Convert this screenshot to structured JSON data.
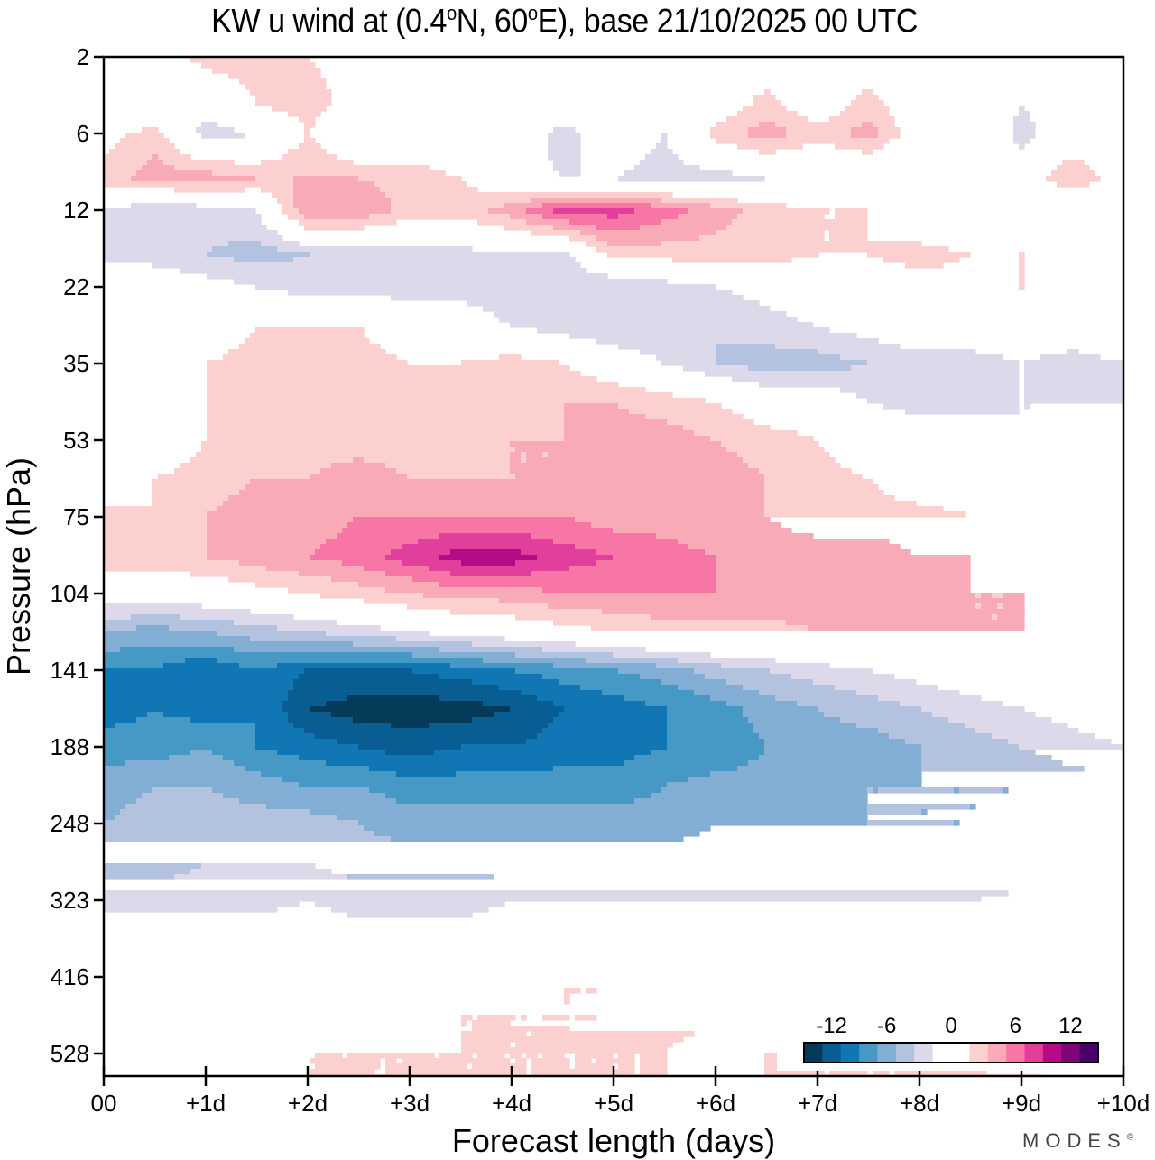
{
  "chart_data": {
    "type": "heatmap",
    "title": "KW u wind at (0.4°N, 60°E),  base 21/10/2025  00 UTC",
    "title_parts": {
      "pre": "KW u wind at (0.4",
      "deg1": "o",
      "mid": "N, 60",
      "deg2": "o",
      "post": "E),  base 21/10/2025  00 UTC"
    },
    "xlabel": "Forecast length (days)",
    "ylabel": "Pressure (hPa)",
    "x_ticks": [
      "00",
      "+1d",
      "+2d",
      "+3d",
      "+4d",
      "+5d",
      "+6d",
      "+7d",
      "+8d",
      "+9d",
      "+10d"
    ],
    "xlim": [
      0,
      10
    ],
    "y_ticks": [
      "2",
      "6",
      "12",
      "22",
      "35",
      "53",
      "75",
      "104",
      "141",
      "188",
      "248",
      "323",
      "416",
      "528"
    ],
    "y_axis_scale": "pressure (log-like, decreasing upward)",
    "colorbar": {
      "ticks": [
        "-12",
        "-6",
        "0",
        "6",
        "12"
      ],
      "levels": [
        -14,
        -12,
        -10,
        -8,
        -6,
        -4,
        -2,
        0,
        2,
        4,
        6,
        8,
        10,
        12,
        14
      ],
      "colors": [
        "#053a58",
        "#085d93",
        "#1176b4",
        "#4698c5",
        "#82aed3",
        "#b3c3df",
        "#dcdaea",
        "#ffffff",
        "#ffffff",
        "#fbd0cf",
        "#f9aab7",
        "#f776a6",
        "#e23e9b",
        "#b60a86",
        "#7f0578",
        "#4a016a"
      ],
      "placement": "bottom-right inside plot"
    },
    "x_days": [
      0,
      0.5,
      1,
      1.5,
      2,
      2.5,
      3,
      3.5,
      4,
      4.5,
      5,
      5.5,
      6,
      6.5,
      7,
      7.5,
      8,
      8.5,
      9,
      9.5,
      10
    ],
    "y_levels_hPa": [
      2,
      4,
      6,
      9,
      12,
      17,
      22,
      28,
      35,
      43,
      53,
      63,
      75,
      89,
      104,
      121,
      141,
      163,
      188,
      217,
      248,
      284,
      323,
      368,
      416,
      470,
      528,
      600
    ],
    "u_wind_ms": [
      [
        0,
        0,
        3,
        3,
        2,
        1,
        1,
        0,
        0,
        -2,
        0,
        0,
        0,
        0,
        0,
        0,
        0,
        0,
        0,
        0,
        0
      ],
      [
        0,
        -2,
        -1,
        2,
        3,
        1,
        0,
        -2,
        0,
        0,
        0,
        -2,
        0,
        3,
        0,
        3,
        0,
        0,
        -2,
        0,
        0
      ],
      [
        1,
        3,
        -3,
        -2,
        2,
        -2,
        0,
        0,
        0,
        -3,
        0,
        -2,
        3,
        5,
        3,
        5,
        0,
        2,
        -3,
        0,
        -1
      ],
      [
        3,
        5,
        5,
        4,
        4,
        4,
        3,
        2,
        -1,
        -2,
        -2,
        -3,
        -3,
        -2,
        -2,
        -2,
        -2,
        0,
        0,
        4,
        0
      ],
      [
        -2,
        -4,
        -3,
        -2,
        6,
        6,
        3,
        3,
        5,
        9,
        9,
        7,
        5,
        3,
        2,
        2,
        -1,
        -2,
        -2,
        -2,
        -2
      ],
      [
        -3,
        -3,
        -4,
        -5,
        -4,
        -4,
        -3,
        -3,
        -2,
        -3,
        3,
        3,
        3,
        3,
        2,
        2,
        3,
        2,
        2,
        2,
        2
      ],
      [
        2,
        0,
        -1,
        -2,
        -3,
        -3,
        -3,
        -3,
        -4,
        -4,
        -4,
        -3,
        -2,
        -1,
        0,
        0,
        1,
        1,
        2,
        0,
        0
      ],
      [
        2,
        0,
        0,
        2,
        2,
        2,
        0,
        0,
        -2,
        -3,
        -4,
        -4,
        -4,
        -3,
        -2,
        -1,
        0,
        0,
        0,
        0,
        0
      ],
      [
        0,
        0,
        2,
        3,
        3,
        3,
        2,
        2,
        3,
        2,
        0,
        -2,
        -4,
        -5,
        -5,
        -4,
        -3,
        -3,
        -2,
        -3,
        -2
      ],
      [
        0,
        0,
        2,
        3,
        3,
        2,
        2,
        3,
        3,
        4,
        4,
        3,
        2,
        0,
        0,
        -2,
        -3,
        -3,
        -2,
        -2,
        -2
      ],
      [
        -2,
        0,
        2,
        3,
        3,
        3,
        3,
        3,
        4,
        4,
        5,
        5,
        4,
        3,
        2,
        0,
        0,
        0,
        -2,
        -2,
        -2
      ],
      [
        0,
        2,
        3,
        4,
        4,
        5,
        4,
        4,
        4,
        4,
        5,
        5,
        5,
        4,
        3,
        2,
        0,
        0,
        0,
        0,
        -2
      ],
      [
        3,
        2,
        4,
        5,
        5,
        6,
        6,
        6,
        6,
        6,
        5,
        5,
        4,
        4,
        3,
        3,
        3,
        2,
        2,
        2,
        2
      ],
      [
        3,
        3,
        4,
        5,
        6,
        7,
        9,
        11,
        11,
        9,
        8,
        7,
        6,
        5,
        5,
        5,
        4,
        4,
        3,
        3,
        2
      ],
      [
        0,
        0,
        0,
        1,
        2,
        3,
        4,
        5,
        5,
        6,
        6,
        6,
        6,
        6,
        6,
        6,
        5,
        4,
        4,
        3,
        3
      ],
      [
        -6,
        -7,
        -6,
        -5,
        -4,
        -3,
        -2,
        -1,
        0,
        1,
        2,
        3,
        3,
        3,
        4,
        4,
        4,
        4,
        4,
        3,
        2
      ],
      [
        -10,
        -10,
        -12,
        -10,
        -12,
        -12,
        -12,
        -11,
        -10,
        -9,
        -8,
        -7,
        -5,
        -4,
        -3,
        -2,
        -1,
        0,
        1,
        2,
        2
      ],
      [
        -11,
        -10,
        -11,
        -10,
        -14,
        -15,
        -15,
        -15,
        -14,
        -12,
        -11,
        -10,
        -9,
        -7,
        -6,
        -5,
        -4,
        -3,
        -2,
        -1,
        0
      ],
      [
        -9,
        -9,
        -8,
        -10,
        -11,
        -12,
        -13,
        -12,
        -12,
        -11,
        -11,
        -10,
        -10,
        -8,
        -7,
        -7,
        -6,
        -5,
        -4,
        -3,
        -2
      ],
      [
        -7,
        -6,
        -6,
        -7,
        -8,
        -8,
        -9,
        -9,
        -9,
        -9,
        -9,
        -8,
        -7,
        -7,
        -7,
        -6,
        -6,
        -6,
        -6,
        -5,
        -5
      ],
      [
        -6,
        -5,
        -5,
        -5,
        -5,
        -6,
        -7,
        -7,
        -7,
        -7,
        -7,
        -7,
        -6,
        -6,
        -6,
        -6,
        -6,
        -6,
        -6,
        -6,
        -6
      ],
      [
        -5,
        -5,
        -4,
        -4,
        -4,
        -5,
        -5,
        -5,
        -5,
        -5,
        -5,
        -5,
        -5,
        -5,
        -5,
        -5,
        -5,
        -5,
        -5,
        -5,
        -5
      ],
      [
        -3,
        -3,
        -3,
        -3,
        -2,
        -3,
        -3,
        -3,
        -2,
        -2,
        -2,
        -2,
        -2,
        -2,
        -2,
        -2,
        -2,
        -2,
        -1,
        -1,
        -1
      ],
      [
        0,
        0,
        0,
        0,
        0,
        -1,
        -1,
        -1,
        0,
        0,
        0,
        0,
        0,
        0,
        0,
        0,
        0,
        0,
        1,
        1,
        1
      ],
      [
        1,
        0,
        0,
        0,
        0,
        0,
        0,
        1,
        1,
        2,
        2,
        2,
        3,
        3,
        3,
        3,
        3,
        3,
        3,
        3,
        3
      ],
      [
        0,
        0,
        0,
        0,
        0,
        0,
        1,
        2,
        2,
        2,
        2,
        3,
        3,
        3,
        3,
        3,
        3,
        3,
        3,
        3,
        3
      ],
      [
        0,
        0,
        0,
        1,
        2,
        2,
        2,
        2,
        2,
        2,
        2,
        2,
        0,
        2,
        2,
        2,
        2,
        2,
        2,
        2,
        2
      ],
      [
        0,
        0,
        2,
        2,
        2,
        2,
        2,
        2,
        2,
        2,
        2,
        2,
        2,
        2,
        2,
        2,
        2,
        2,
        2,
        2,
        2
      ]
    ]
  },
  "branding": {
    "watermark": "MODES",
    "mark": "©"
  }
}
